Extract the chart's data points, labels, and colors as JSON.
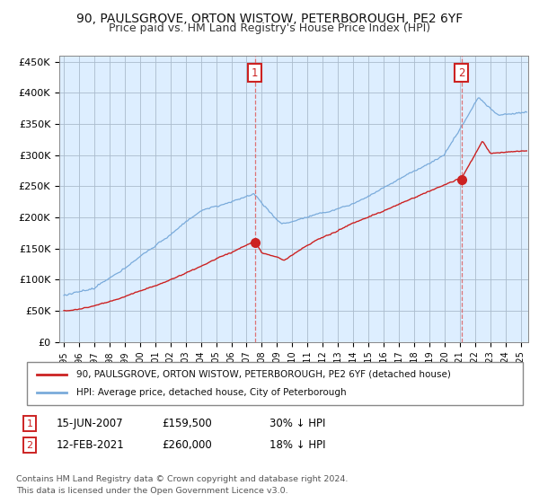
{
  "title": "90, PAULSGROVE, ORTON WISTOW, PETERBOROUGH, PE2 6YF",
  "subtitle": "Price paid vs. HM Land Registry's House Price Index (HPI)",
  "title_fontsize": 10,
  "subtitle_fontsize": 9,
  "background_color": "#ffffff",
  "plot_bg_color": "#ddeeff",
  "grid_color": "#aabbcc",
  "sale1_date_x": 2007.54,
  "sale1_price": 159500,
  "sale2_date_x": 2021.12,
  "sale2_price": 260000,
  "legend_line1": "90, PAULSGROVE, ORTON WISTOW, PETERBOROUGH, PE2 6YF (detached house)",
  "legend_line2": "HPI: Average price, detached house, City of Peterborough",
  "sale1_col1": "15-JUN-2007",
  "sale1_col2": "£159,500",
  "sale1_col3": "30% ↓ HPI",
  "sale2_col1": "12-FEB-2021",
  "sale2_col2": "£260,000",
  "sale2_col3": "18% ↓ HPI",
  "footer": "Contains HM Land Registry data © Crown copyright and database right 2024.\nThis data is licensed under the Open Government Licence v3.0.",
  "red_color": "#cc2222",
  "blue_color": "#7aabdb",
  "dashed_color": "#dd6666",
  "ylim": [
    0,
    460000
  ],
  "xlim_start": 1994.7,
  "xlim_end": 2025.5,
  "yticks": [
    0,
    50000,
    100000,
    150000,
    200000,
    250000,
    300000,
    350000,
    400000,
    450000
  ],
  "ytick_labels": [
    "£0",
    "£50K",
    "£100K",
    "£150K",
    "£200K",
    "£250K",
    "£300K",
    "£350K",
    "£400K",
    "£450K"
  ],
  "xtick_years": [
    1995,
    1996,
    1997,
    1998,
    1999,
    2000,
    2001,
    2002,
    2003,
    2004,
    2005,
    2006,
    2007,
    2008,
    2009,
    2010,
    2011,
    2012,
    2013,
    2014,
    2015,
    2016,
    2017,
    2018,
    2019,
    2020,
    2021,
    2022,
    2023,
    2024,
    2025
  ]
}
